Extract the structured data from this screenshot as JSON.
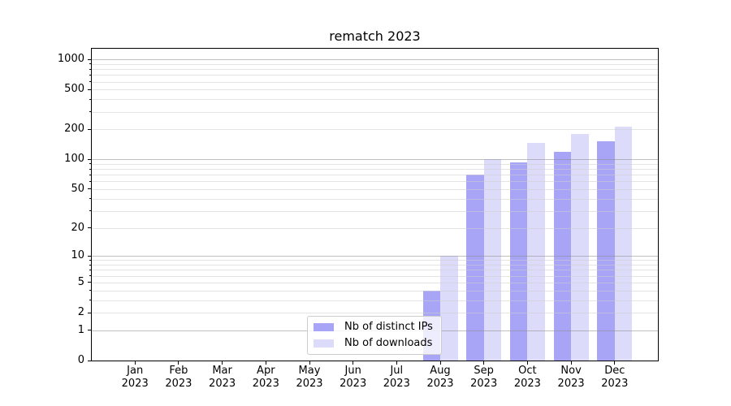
{
  "chart_data": {
    "type": "bar",
    "title": "rematch 2023",
    "y_scale": "log1p",
    "categories": [
      "Jan",
      "Feb",
      "Mar",
      "Apr",
      "May",
      "Jun",
      "Jul",
      "Aug",
      "Sep",
      "Oct",
      "Nov",
      "Dec"
    ],
    "year_label": "2023",
    "series": [
      {
        "name": "Nb of distinct IPs",
        "color": "#a8a4f6",
        "values": [
          0,
          0,
          0,
          0,
          0,
          0,
          0,
          4,
          70,
          94,
          120,
          153
        ]
      },
      {
        "name": "Nb of downloads",
        "color": "#dcdbfa",
        "values": [
          0,
          0,
          0,
          0,
          0,
          0,
          0,
          10,
          100,
          145,
          181,
          212
        ]
      }
    ],
    "y_ticks": [
      0,
      1,
      2,
      5,
      10,
      20,
      50,
      100,
      200,
      500,
      1000
    ],
    "ylim": [
      0,
      1276
    ],
    "xlabel": "",
    "ylabel": "",
    "grid": {
      "horizontal": true,
      "vertical": false,
      "minor_log_lines": true
    },
    "legend_position": "inside-bottom-center-left"
  },
  "colors": {
    "major_grid": "#c8c8c8",
    "minor_grid": "#ebebeb",
    "spine": "#000000",
    "text": "#000000",
    "background": "#ffffff"
  }
}
